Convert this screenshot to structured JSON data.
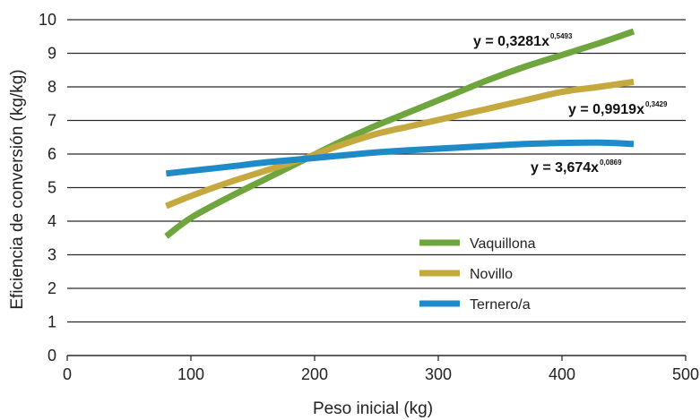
{
  "chart_data": {
    "type": "line",
    "xlabel": "Peso inicial (kg)",
    "ylabel": "Eficiencia de conversión (kg/kg)",
    "xlim": [
      0,
      500
    ],
    "ylim": [
      0,
      10
    ],
    "xticks": [
      0,
      100,
      200,
      300,
      400,
      500
    ],
    "yticks": [
      0,
      1,
      2,
      3,
      4,
      5,
      6,
      7,
      8,
      9,
      10
    ],
    "grid": "horizontal",
    "legend_position": "bottom-right",
    "series": [
      {
        "name": "Vaquillona",
        "color": "#6ea53c",
        "x": [
          80,
          100,
          130,
          160,
          190,
          220,
          250,
          280,
          310,
          340,
          370,
          400,
          430,
          458
        ],
        "y": [
          3.55,
          4.1,
          4.7,
          5.25,
          5.8,
          6.35,
          6.85,
          7.3,
          7.75,
          8.2,
          8.6,
          8.95,
          9.3,
          9.65
        ],
        "equation": {
          "base": "y = 0,3281x",
          "exponent": "0,5493"
        }
      },
      {
        "name": "Novillo",
        "color": "#c6a93e",
        "x": [
          80,
          100,
          130,
          160,
          190,
          220,
          250,
          280,
          310,
          340,
          370,
          400,
          430,
          458
        ],
        "y": [
          4.45,
          4.75,
          5.15,
          5.5,
          5.85,
          6.25,
          6.6,
          6.85,
          7.1,
          7.35,
          7.6,
          7.85,
          8.0,
          8.15
        ],
        "equation": {
          "base": "y = 0,9919x",
          "exponent": "0,3429"
        }
      },
      {
        "name": "Ternero/a",
        "color": "#1f8ac8",
        "x": [
          80,
          100,
          130,
          160,
          190,
          220,
          250,
          280,
          310,
          340,
          370,
          400,
          430,
          458
        ],
        "y": [
          5.42,
          5.5,
          5.62,
          5.75,
          5.85,
          5.95,
          6.05,
          6.12,
          6.18,
          6.24,
          6.3,
          6.33,
          6.34,
          6.3
        ],
        "equation": {
          "base": "y = 3,674x",
          "exponent": "0,0869"
        }
      }
    ]
  }
}
